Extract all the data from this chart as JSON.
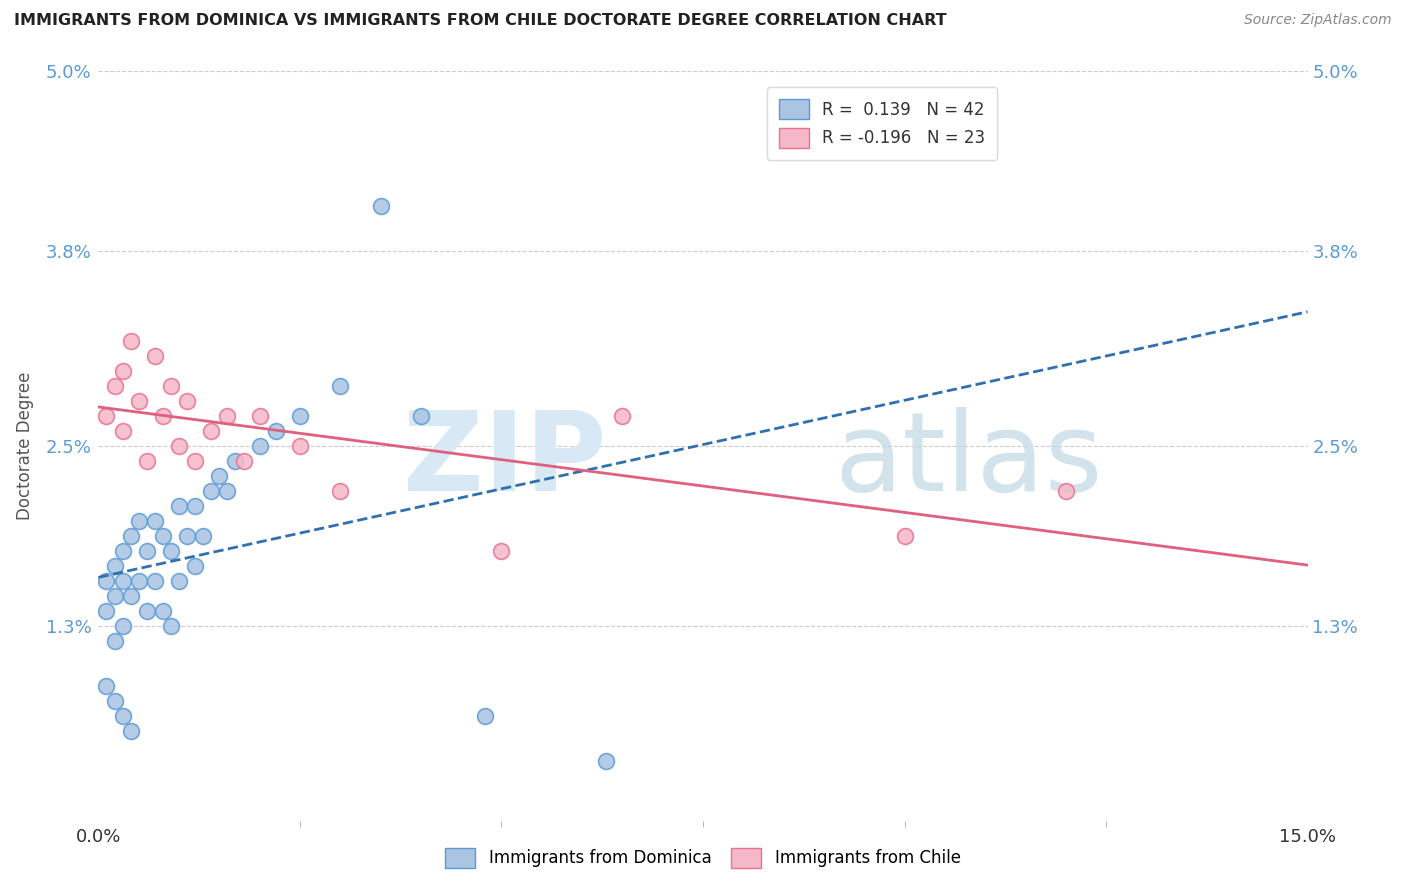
{
  "title": "IMMIGRANTS FROM DOMINICA VS IMMIGRANTS FROM CHILE DOCTORATE DEGREE CORRELATION CHART",
  "source": "Source: ZipAtlas.com",
  "ylabel": "Doctorate Degree",
  "xlim": [
    0.0,
    0.15
  ],
  "ylim": [
    0.0,
    0.05
  ],
  "xtick_positions": [
    0.0,
    0.15
  ],
  "xtick_labels": [
    "0.0%",
    "15.0%"
  ],
  "ytick_positions": [
    0.013,
    0.025,
    0.038,
    0.05
  ],
  "ytick_labels": [
    "1.3%",
    "2.5%",
    "3.8%",
    "5.0%"
  ],
  "legend_labels": [
    "Immigrants from Dominica",
    "Immigrants from Chile"
  ],
  "blue_color": "#aac4e2",
  "pink_color": "#f5b8c8",
  "blue_edge_color": "#5b9bd5",
  "pink_edge_color": "#e87090",
  "blue_line_color": "#3070b0",
  "pink_line_color": "#e06080",
  "dominica_x": [
    0.001,
    0.001,
    0.002,
    0.002,
    0.002,
    0.003,
    0.003,
    0.003,
    0.004,
    0.004,
    0.005,
    0.005,
    0.006,
    0.006,
    0.007,
    0.007,
    0.008,
    0.008,
    0.009,
    0.009,
    0.01,
    0.01,
    0.011,
    0.012,
    0.012,
    0.013,
    0.014,
    0.015,
    0.016,
    0.017,
    0.02,
    0.022,
    0.025,
    0.03,
    0.035,
    0.04,
    0.001,
    0.002,
    0.003,
    0.004,
    0.048,
    0.063
  ],
  "dominica_y": [
    0.016,
    0.014,
    0.017,
    0.015,
    0.012,
    0.018,
    0.016,
    0.013,
    0.019,
    0.015,
    0.02,
    0.016,
    0.018,
    0.014,
    0.02,
    0.016,
    0.019,
    0.014,
    0.018,
    0.013,
    0.021,
    0.016,
    0.019,
    0.021,
    0.017,
    0.019,
    0.022,
    0.023,
    0.022,
    0.024,
    0.025,
    0.026,
    0.027,
    0.029,
    0.041,
    0.027,
    0.009,
    0.008,
    0.007,
    0.006,
    0.007,
    0.004
  ],
  "chile_x": [
    0.001,
    0.002,
    0.003,
    0.003,
    0.004,
    0.005,
    0.006,
    0.007,
    0.008,
    0.009,
    0.01,
    0.011,
    0.012,
    0.014,
    0.016,
    0.018,
    0.02,
    0.025,
    0.03,
    0.05,
    0.065,
    0.1,
    0.12
  ],
  "chile_y": [
    0.027,
    0.029,
    0.03,
    0.026,
    0.032,
    0.028,
    0.024,
    0.031,
    0.027,
    0.029,
    0.025,
    0.028,
    0.024,
    0.026,
    0.027,
    0.024,
    0.027,
    0.025,
    0.022,
    0.018,
    0.027,
    0.019,
    0.022
  ],
  "figsize": [
    14.06,
    8.92
  ],
  "dpi": 100
}
